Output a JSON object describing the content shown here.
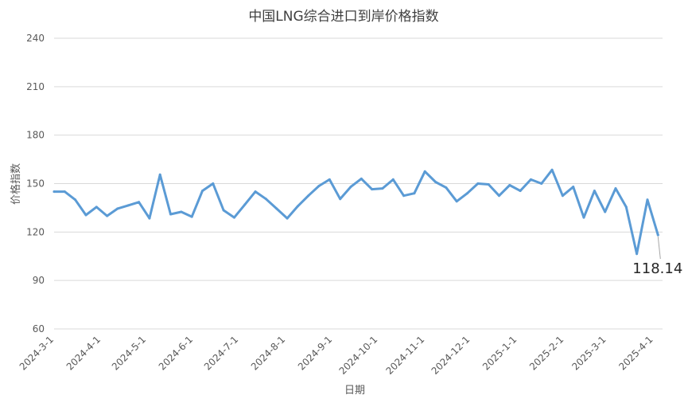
{
  "chart_data": {
    "type": "line",
    "title": "中国LNG综合进口到岸价格指数",
    "xlabel": "日期",
    "ylabel": "价格指数",
    "ylim": [
      60,
      240
    ],
    "yticks": [
      60,
      90,
      120,
      150,
      180,
      210,
      240
    ],
    "grid": true,
    "legend": "none",
    "x_tick_labels": [
      "2024-3-1",
      "2024-4-1",
      "2024-5-1",
      "2024-6-1",
      "2024-7-1",
      "2024-8-1",
      "2024-9-1",
      "2024-10-1",
      "2024-11-1",
      "2024-12-1",
      "2025-1-1",
      "2025-2-1",
      "2025-3-1",
      "2025-4-1"
    ],
    "series": [
      {
        "color": "#5b9bd5",
        "x": [
          "2024-3-1",
          "2024-3-8",
          "2024-3-15",
          "2024-3-22",
          "2024-3-29",
          "2024-4-5",
          "2024-4-12",
          "2024-4-19",
          "2024-4-26",
          "2024-5-3",
          "2024-5-10",
          "2024-5-17",
          "2024-5-24",
          "2024-5-31",
          "2024-6-7",
          "2024-6-14",
          "2024-6-21",
          "2024-6-28",
          "2024-7-5",
          "2024-7-12",
          "2024-7-19",
          "2024-7-26",
          "2024-8-2",
          "2024-8-9",
          "2024-8-16",
          "2024-8-23",
          "2024-8-30",
          "2024-9-6",
          "2024-9-13",
          "2024-9-20",
          "2024-9-27",
          "2024-10-4",
          "2024-10-11",
          "2024-10-18",
          "2024-10-25",
          "2024-11-1",
          "2024-11-8",
          "2024-11-15",
          "2024-11-22",
          "2024-11-29",
          "2024-12-6",
          "2024-12-13",
          "2024-12-20",
          "2024-12-27",
          "2025-1-3",
          "2025-1-10",
          "2025-1-17",
          "2025-1-24",
          "2025-1-31",
          "2025-2-7",
          "2025-2-14",
          "2025-2-21",
          "2025-2-28",
          "2025-3-7",
          "2025-3-14",
          "2025-3-21",
          "2025-3-28",
          "2025-4-4"
        ],
        "values": [
          145,
          145,
          140,
          130.5,
          135.5,
          130,
          134.5,
          136.5,
          138.5,
          128.5,
          155.5,
          131,
          132.5,
          129.5,
          145.5,
          150,
          133.5,
          129,
          137,
          145,
          140.5,
          134.5,
          128.5,
          136,
          142.5,
          148.5,
          152.5,
          140.5,
          148,
          153,
          146.5,
          147,
          152.5,
          142.5,
          144,
          157.5,
          151,
          147.5,
          139,
          144,
          150,
          149.5,
          142.5,
          149,
          145.5,
          152.5,
          150,
          158.5,
          142.5,
          148,
          129,
          145.5,
          132.5,
          147,
          135.5,
          106.5,
          140,
          118.14
        ]
      }
    ],
    "annotations": [
      {
        "label": "118.14"
      }
    ]
  }
}
